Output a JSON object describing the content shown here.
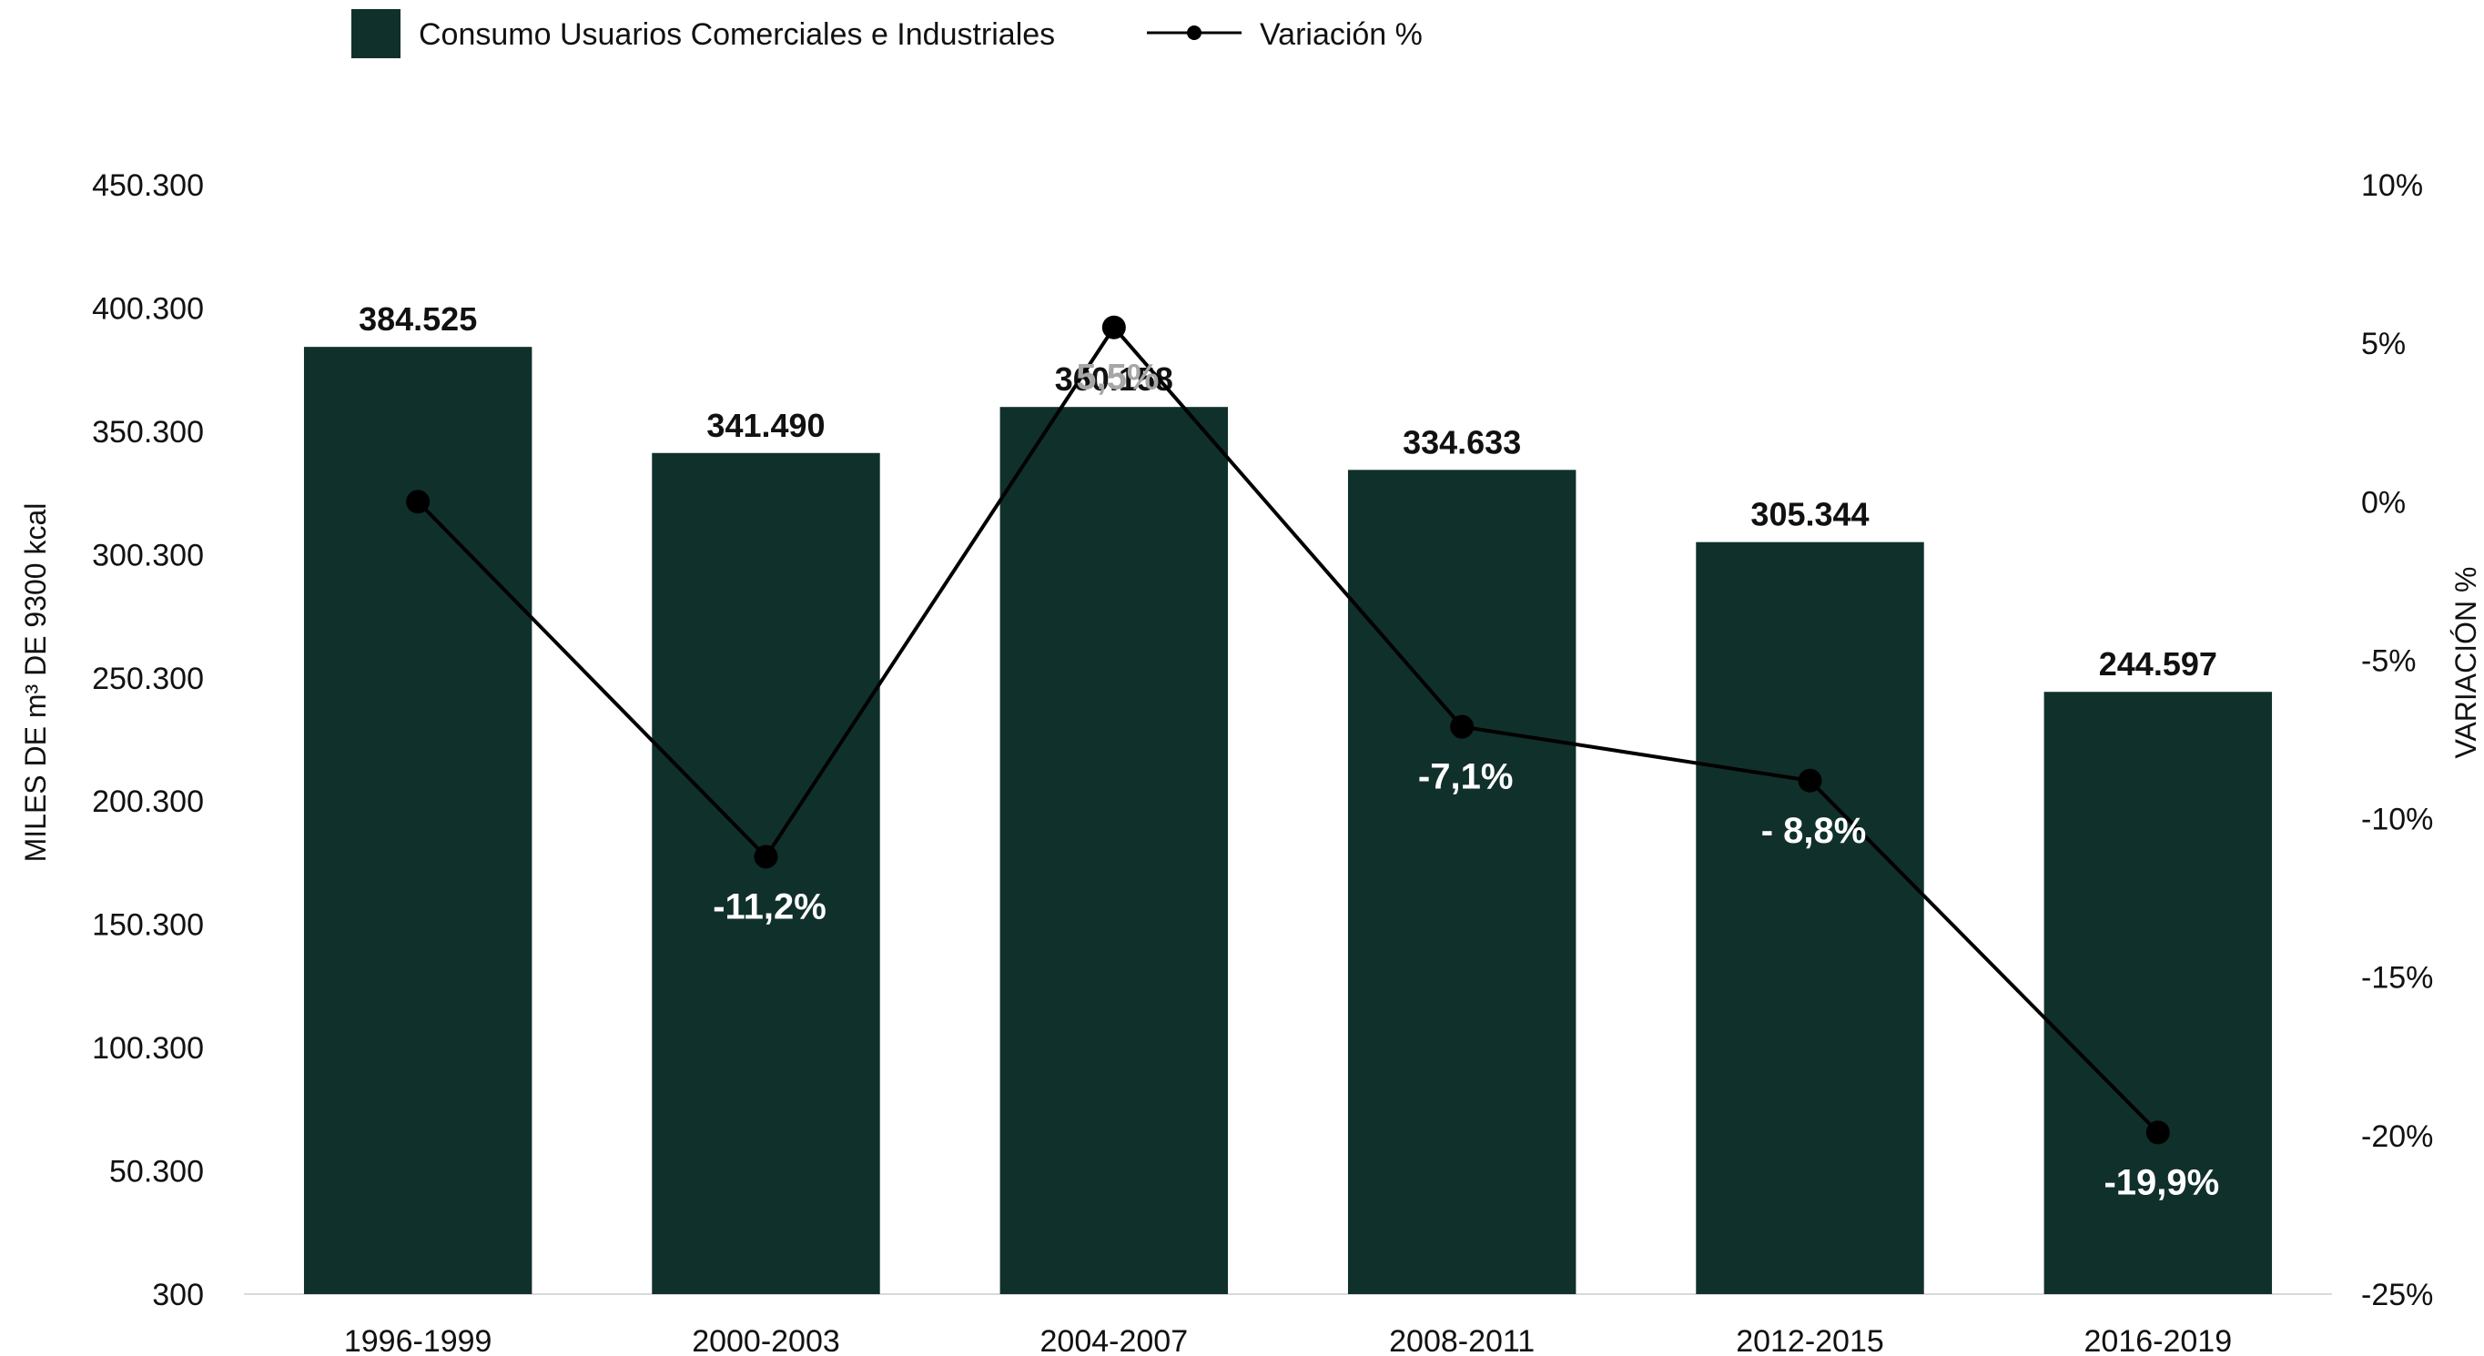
{
  "chart_data": {
    "type": "bar",
    "categories": [
      "1996-1999",
      "2000-2003",
      "2004-2007",
      "2008-2011",
      "2012-2015",
      "2016-2019"
    ],
    "series": [
      {
        "name": "Consumo Usuarios Comerciales e Industriales",
        "type": "bar",
        "axis": "left",
        "values": [
          384525,
          341490,
          360158,
          334633,
          305344,
          244597
        ],
        "labels": [
          "384.525",
          "341.490",
          "360.158",
          "334.633",
          "305.344",
          "244.597"
        ],
        "color": "#10302B"
      },
      {
        "name": "Variación %",
        "type": "line",
        "axis": "right",
        "values": [
          0,
          -11.2,
          5.5,
          -7.1,
          -8.8,
          -19.9
        ],
        "labels": [
          "",
          "-11,2%",
          "5,5%",
          "-7,1%",
          "- 8,8%",
          "-19,9%"
        ],
        "label_colors": [
          "#ffffff",
          "#ffffff",
          "#a6a6a6",
          "#ffffff",
          "#ffffff",
          "#ffffff"
        ],
        "color": "#000000"
      }
    ],
    "ylabel": "MILES DE m³ DE 9300 kcal",
    "y2label": "VARIACIÓN %",
    "ylim": [
      300,
      450300
    ],
    "yticks": [
      300,
      50300,
      100300,
      150300,
      200300,
      250300,
      300300,
      350300,
      400300,
      450300
    ],
    "ytick_labels": [
      "300",
      "50.300",
      "100.300",
      "150.300",
      "200.300",
      "250.300",
      "300.300",
      "350.300",
      "400.300",
      "450.300"
    ],
    "y2lim": [
      -25,
      10
    ],
    "y2ticks": [
      -25,
      -20,
      -15,
      -10,
      -5,
      0,
      5,
      10
    ],
    "y2tick_labels": [
      "-25%",
      "-20%",
      "-15%",
      "-10%",
      "-5%",
      "0%",
      "5%",
      "10%"
    ],
    "grid": false,
    "legend_position": "top-left"
  }
}
